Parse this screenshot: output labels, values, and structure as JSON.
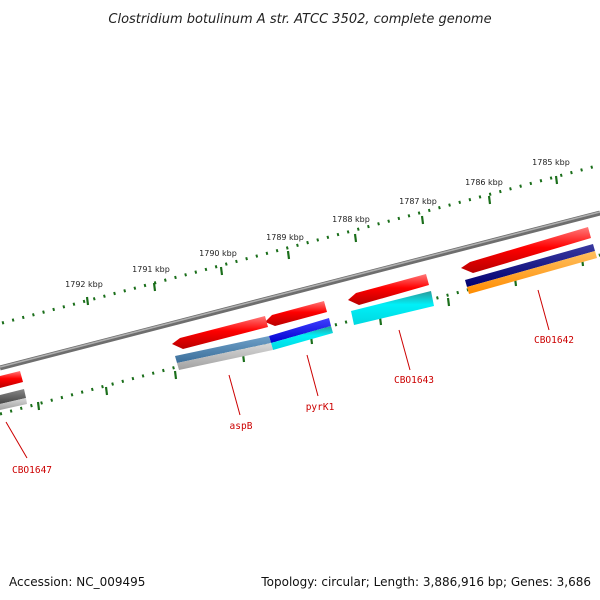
{
  "title": "Clostridium botulinum A str. ATCC 3502, complete genome",
  "footer": {
    "accession": "Accession: NC_009495",
    "topology": "Topology: circular; Length: 3,886,916 bp; Genes: 3,686"
  },
  "kbp_labels": [
    "1785 kbp",
    "1786 kbp",
    "1787 kbp",
    "1788 kbp",
    "1789 kbp",
    "1790 kbp",
    "1791 kbp",
    "1792 kbp"
  ],
  "gene_labels": [
    "CBO1642",
    "CBO1643",
    "pyrK1",
    "aspB",
    "CBO1647"
  ],
  "colors": {
    "backbone": "#7a7a7a",
    "tick": "#1a6e1a",
    "gene_forward": "#ff0000",
    "gene_label": "#cc0000",
    "cyan": "#00e5ee",
    "navy": "#000080",
    "orange": "#ff9900",
    "blue": "#0000ff",
    "steelblue": "#4682b4",
    "gray": "#b0b0b0",
    "darkgray": "#555555"
  }
}
